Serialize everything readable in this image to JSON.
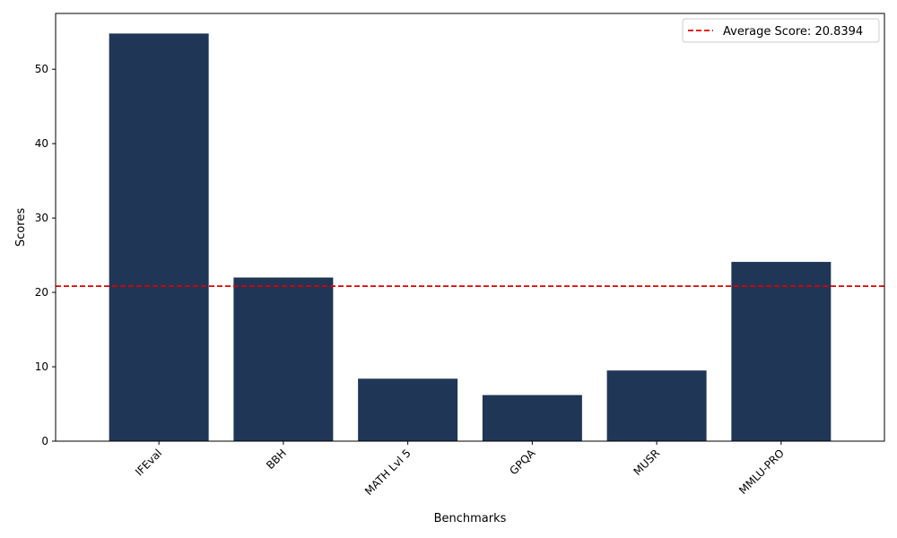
{
  "chart_data": {
    "type": "bar",
    "title": "",
    "xlabel": "Benchmarks",
    "ylabel": "Scores",
    "categories": [
      "IFEval",
      "BBH",
      "MATH Lvl 5",
      "GPQA",
      "MUSR",
      "MMLU-PRO"
    ],
    "values": [
      54.8,
      22.0,
      8.4,
      6.2,
      9.5,
      24.1
    ],
    "ylim": [
      0,
      57.5
    ],
    "yticks": [
      0,
      10,
      20,
      30,
      40,
      50
    ],
    "bar_color": "#1f3657",
    "average_line": {
      "value": 20.8394,
      "label": "Average Score: 20.8394",
      "color": "#e00000",
      "style": "dashed"
    },
    "legend_position": "top-right",
    "grid": false,
    "xtick_rotation": 45
  }
}
